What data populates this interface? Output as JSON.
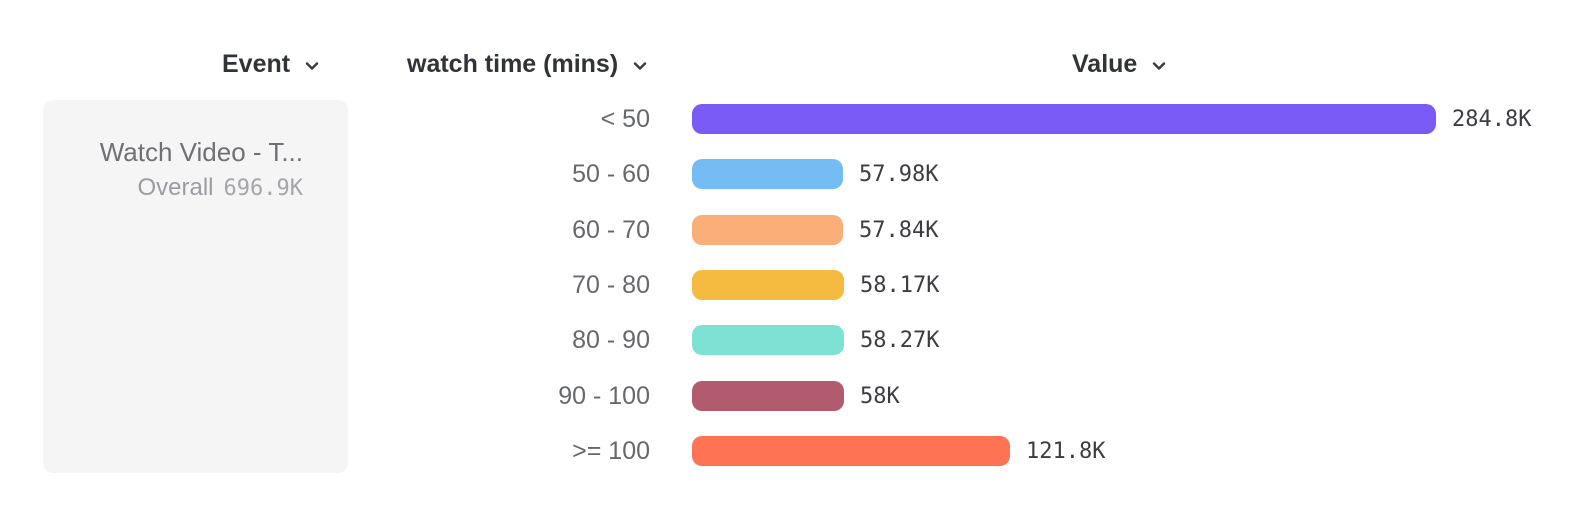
{
  "headers": {
    "event": {
      "label": "Event"
    },
    "breakdown": {
      "label": "watch time (mins)"
    },
    "value": {
      "label": "Value"
    }
  },
  "event_card": {
    "title": "Watch Video - T...",
    "overall_label": "Overall",
    "overall_value": "696.9K"
  },
  "chart_data": {
    "type": "bar",
    "orientation": "horizontal",
    "title": "",
    "xlabel": "",
    "ylabel": "watch time (mins)",
    "categories": [
      "< 50",
      "50 - 60",
      "60 - 70",
      "70 - 80",
      "80 - 90",
      "90 - 100",
      ">= 100"
    ],
    "values": [
      284800,
      57980,
      57840,
      58170,
      58270,
      58000,
      121800
    ],
    "value_labels": [
      "284.8K",
      "57.98K",
      "57.84K",
      "58.17K",
      "58.27K",
      "58K",
      "121.8K"
    ],
    "bar_colors": [
      "#7B5BF5",
      "#74BDF4",
      "#FBAE78",
      "#F5BB40",
      "#7DE2D3",
      "#B25A6E",
      "#FD7354"
    ],
    "max_value": 284800,
    "grid": false,
    "legend": false
  },
  "icons": {
    "dropdown": "chevron-down-icon",
    "chevron_color": "#3a3c42"
  }
}
